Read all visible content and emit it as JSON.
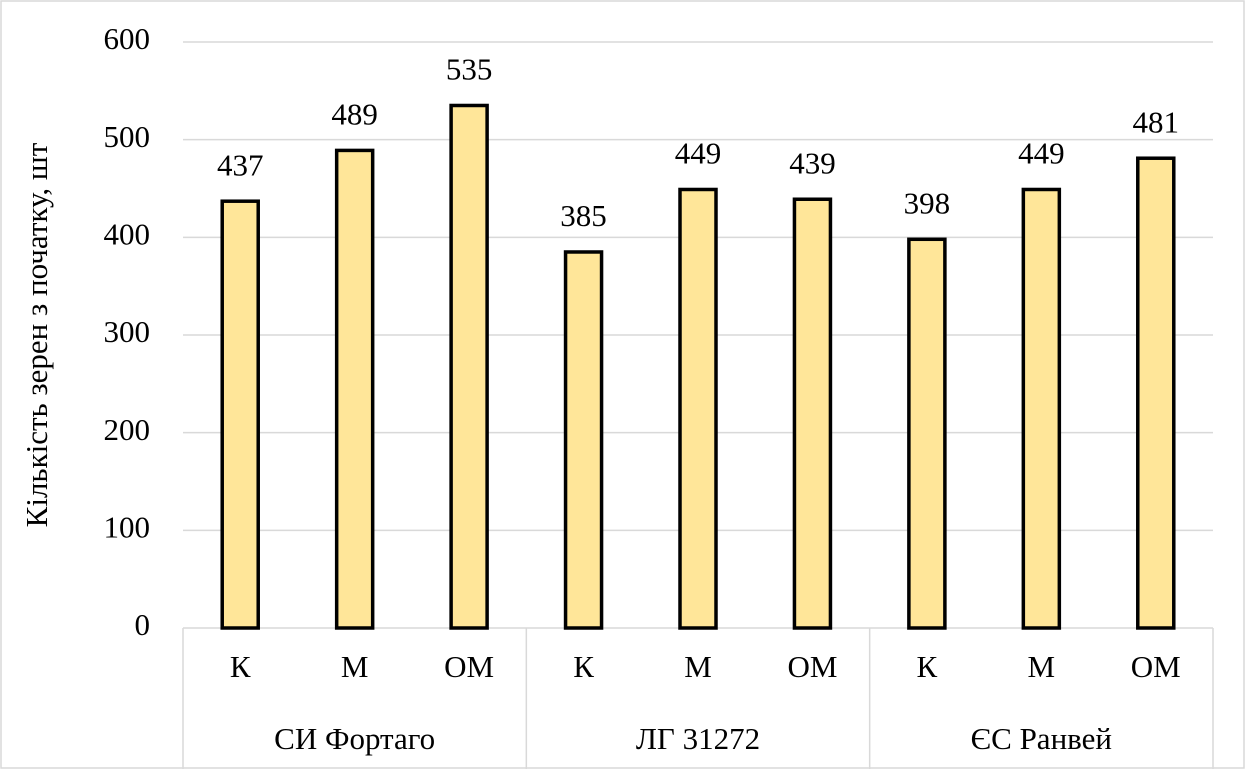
{
  "chart_data": {
    "type": "bar",
    "y_label": "Кількість зерен з початку, шт",
    "categories": [
      "К",
      "М",
      "ОМ",
      "К",
      "М",
      "ОМ",
      "К",
      "М",
      "ОМ"
    ],
    "groups": [
      "СИ Фортаго",
      "ЛГ 31272",
      "ЄС Ранвей"
    ],
    "values": [
      437,
      489,
      535,
      385,
      449,
      439,
      398,
      449,
      481
    ],
    "color": "#ffe699",
    "ylim": [
      0,
      600
    ],
    "yticks": [
      0,
      100,
      200,
      300,
      400,
      500,
      600
    ],
    "grid": true
  }
}
